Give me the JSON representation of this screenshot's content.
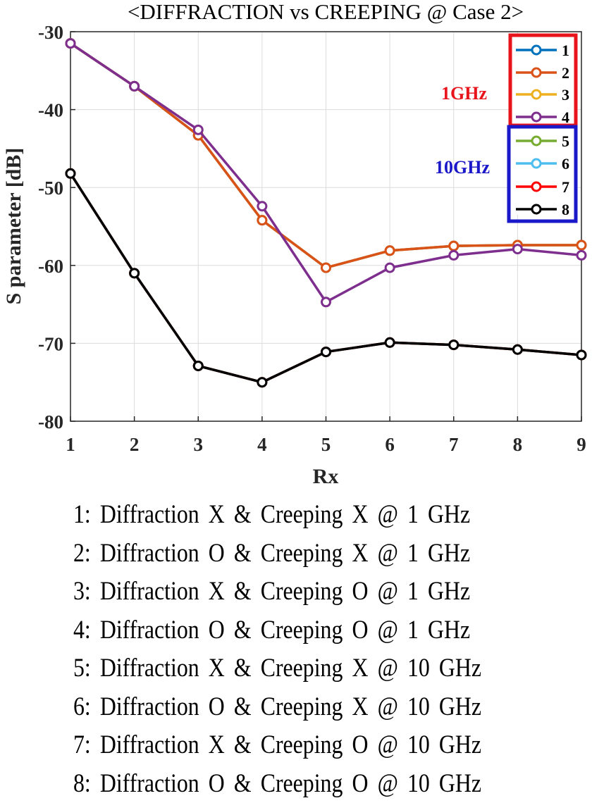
{
  "chart_data": {
    "type": "line",
    "title": "<DIFFRACTION vs CREEPING @ Case 2>",
    "xlabel": "Rx",
    "ylabel": "S parameter [dB]",
    "x": [
      1,
      2,
      3,
      4,
      5,
      6,
      7,
      8,
      9
    ],
    "xlim": [
      1,
      9
    ],
    "ylim": [
      -80,
      -30
    ],
    "xticks": [
      "1",
      "2",
      "3",
      "4",
      "5",
      "6",
      "7",
      "8",
      "9"
    ],
    "yticks": [
      "-30",
      "-40",
      "-50",
      "-60",
      "-70",
      "-80"
    ],
    "grid": true,
    "legend_position": "top-right",
    "series": [
      {
        "name": "1",
        "color": "#0072BD",
        "values": [
          -31.5,
          -37.0,
          -43.3,
          -54.2,
          -60.3,
          -58.1,
          -57.5,
          -57.4,
          -57.4
        ]
      },
      {
        "name": "3",
        "color": "#EDB120",
        "values": [
          -31.5,
          -37.0,
          -43.3,
          -54.2,
          -60.3,
          -58.1,
          -57.5,
          -57.4,
          -57.4
        ]
      },
      {
        "name": "2",
        "color": "#D95319",
        "values": [
          -31.5,
          -37.0,
          -43.3,
          -54.2,
          -60.3,
          -58.1,
          -57.5,
          -57.4,
          -57.4
        ]
      },
      {
        "name": "4",
        "color": "#7E2F8E",
        "values": [
          -31.5,
          -37.0,
          -42.6,
          -52.4,
          -64.7,
          -60.3,
          -58.7,
          -57.9,
          -58.7
        ]
      },
      {
        "name": "5",
        "color": "#77AC30",
        "values": [
          -48.2,
          -61.0,
          -72.9,
          -75.0,
          -71.1,
          -69.9,
          -70.2,
          -70.8,
          -71.5
        ]
      },
      {
        "name": "6",
        "color": "#4DBEEE",
        "values": [
          -48.2,
          -61.0,
          -72.9,
          -75.0,
          -71.1,
          -69.9,
          -70.2,
          -70.8,
          -71.5
        ]
      },
      {
        "name": "7",
        "color": "#FF0000",
        "values": [
          -48.2,
          -61.0,
          -72.9,
          -75.0,
          -71.1,
          -69.9,
          -70.2,
          -70.8,
          -71.5
        ]
      },
      {
        "name": "8",
        "color": "#000000",
        "values": [
          -48.2,
          -61.0,
          -72.9,
          -75.0,
          -71.1,
          -69.9,
          -70.2,
          -70.8,
          -71.5
        ]
      }
    ],
    "legend_entries": [
      {
        "label": "1",
        "color": "#0072BD"
      },
      {
        "label": "2",
        "color": "#D95319"
      },
      {
        "label": "3",
        "color": "#EDB120"
      },
      {
        "label": "4",
        "color": "#7E2F8E"
      },
      {
        "label": "5",
        "color": "#77AC30"
      },
      {
        "label": "6",
        "color": "#4DBEEE"
      },
      {
        "label": "7",
        "color": "#FF0000"
      },
      {
        "label": "8",
        "color": "#000000"
      }
    ],
    "group_labels": {
      "low": {
        "text": "1GHz",
        "color": "#E8141C"
      },
      "high": {
        "text": "10GHz",
        "color": "#1A18C8"
      }
    }
  },
  "descriptions": [
    "1: Diffraction X & Creeping X @ 1 GHz",
    "2: Diffraction O & Creeping X @ 1 GHz",
    "3: Diffraction X & Creeping O @ 1 GHz",
    "4: Diffraction O & Creeping O @ 1 GHz",
    "5: Diffraction X & Creeping X @ 10 GHz",
    "6: Diffraction O & Creeping X @ 10 GHz",
    "7: Diffraction X & Creeping O @ 10 GHz",
    "8: Diffraction O & Creeping O @ 10 GHz"
  ]
}
